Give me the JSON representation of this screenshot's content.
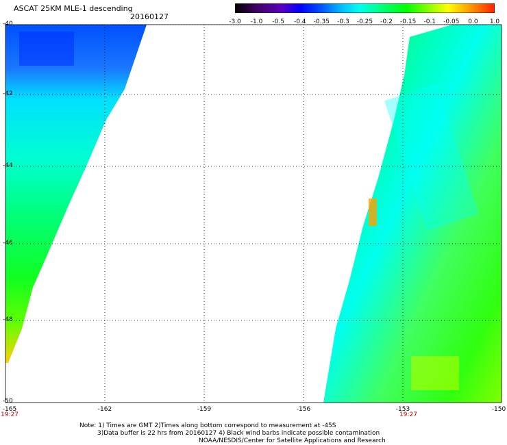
{
  "header": {
    "title": "ASCAT 25KM MLE-1 descending",
    "date": "20160127"
  },
  "colorbar": {
    "labels": [
      "-3.0",
      "-1.0",
      "-0.5",
      "-0.4",
      "-0.35",
      "-0.3",
      "-0.25",
      "-0.2",
      "-0.15",
      "-0.1",
      "-0.05",
      "0.0",
      "1.0"
    ],
    "colors": [
      "#000000",
      "#5a00a0",
      "#0000ff",
      "#0060ff",
      "#00c8ff",
      "#00ffee",
      "#00ff80",
      "#00ff00",
      "#80ff00",
      "#ffff00",
      "#ffa000",
      "#ff3000",
      "#ff0000"
    ]
  },
  "map": {
    "lat_labels": [
      "-40",
      "-42",
      "-44",
      "-46",
      "-48",
      "-50"
    ],
    "lon_labels": [
      "-165",
      "-162",
      "-159",
      "-156",
      "-153",
      "-150"
    ],
    "time_labels": [
      "19:27",
      "19:27"
    ]
  },
  "footer": {
    "line1": "Note: 1) Times are GMT 2)Times along bottom correspond to measurement at -45S",
    "line2": "3)Data buffer is 22 hrs from 20160127 4) Black wind barbs indicate possible contamination",
    "line3": "NOAA/NESDIS/Center for Satellite Applications and Research"
  }
}
